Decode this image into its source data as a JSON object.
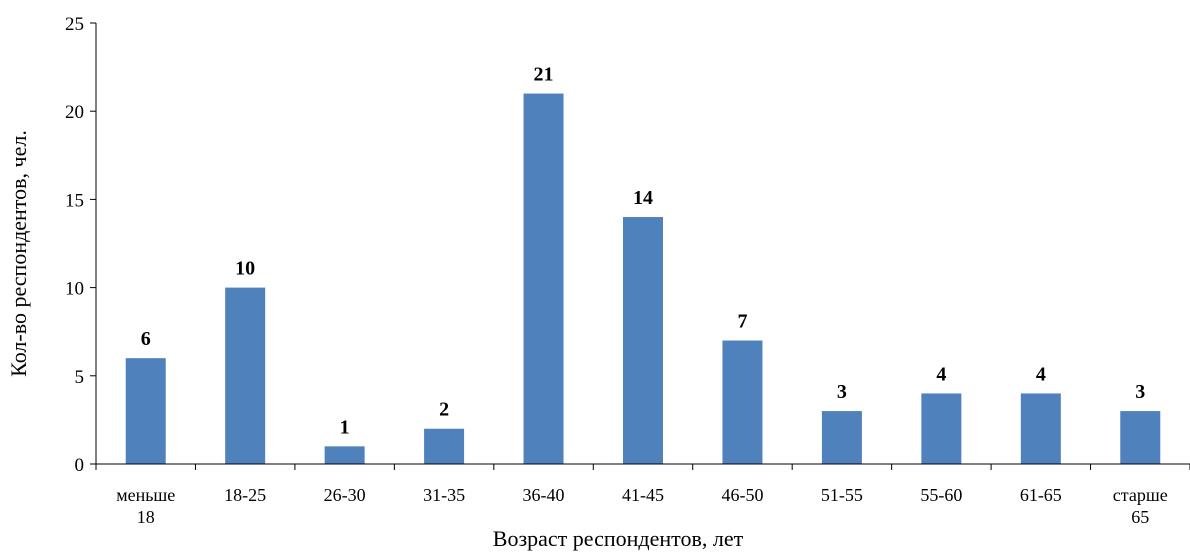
{
  "chart_data": {
    "type": "bar",
    "categories": [
      [
        "меньше",
        "18"
      ],
      [
        "18-25"
      ],
      [
        "26-30"
      ],
      [
        "31-35"
      ],
      [
        "36-40"
      ],
      [
        "41-45"
      ],
      [
        "46-50"
      ],
      [
        "51-55"
      ],
      [
        "55-60"
      ],
      [
        "61-65"
      ],
      [
        "старше",
        "65"
      ]
    ],
    "values": [
      6,
      10,
      1,
      2,
      21,
      14,
      7,
      3,
      4,
      4,
      3
    ],
    "xlabel": "Возраст респондентов, лет",
    "ylabel": "Кол-во респондентов, чел.",
    "ylim": [
      0,
      25
    ],
    "yticks": [
      0,
      5,
      10,
      15,
      20,
      25
    ],
    "data_labels": true,
    "grid": false,
    "bar_color": "#4f81bd"
  }
}
